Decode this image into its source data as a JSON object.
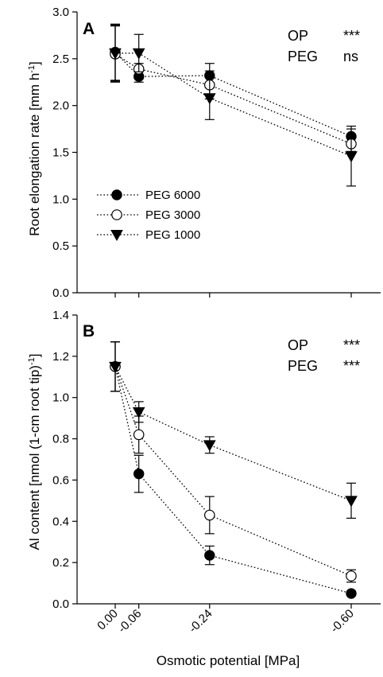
{
  "chart_data": [
    {
      "type": "line",
      "panel_label": "A",
      "ylabel": "Root elongation rate [mm h",
      "ylabel_sup": "-1",
      "ylabel_end": "]",
      "ylim": [
        0,
        3.0
      ],
      "yticks": [
        "0.0",
        "0.5",
        "1.0",
        "1.5",
        "2.0",
        "2.5",
        "3.0"
      ],
      "x": [
        0.0,
        -0.06,
        -0.24,
        -0.6
      ],
      "series": [
        {
          "name": "PEG 6000",
          "marker": "circle-filled",
          "values": [
            2.57,
            2.31,
            2.32,
            1.67
          ],
          "errors": [
            0.3,
            0.06,
            0.13,
            0.08
          ]
        },
        {
          "name": "PEG 3000",
          "marker": "circle-open",
          "values": [
            2.55,
            2.39,
            2.22,
            1.59
          ],
          "errors": [
            0.3,
            0.06,
            0.15,
            0.08
          ]
        },
        {
          "name": "PEG 1000",
          "marker": "triangle-down",
          "values": [
            2.56,
            2.56,
            2.08,
            1.46
          ],
          "errors": [
            0.3,
            0.2,
            0.23,
            0.32
          ]
        }
      ],
      "stats": [
        {
          "label": "OP",
          "value": "***"
        },
        {
          "label": "PEG",
          "value": "ns"
        }
      ],
      "legend_position": "center-left"
    },
    {
      "type": "line",
      "panel_label": "B",
      "ylabel": "Al content [nmol (1-cm root tip)",
      "ylabel_sup": "-1",
      "ylabel_end": "]",
      "ylim": [
        0,
        1.4
      ],
      "yticks": [
        "0.0",
        "0.2",
        "0.4",
        "0.6",
        "0.8",
        "1.0",
        "1.2",
        "1.4"
      ],
      "x": [
        0.0,
        -0.06,
        -0.24,
        -0.6
      ],
      "series": [
        {
          "name": "PEG 6000",
          "marker": "circle-filled",
          "values": [
            1.15,
            0.63,
            0.235,
            0.05
          ],
          "errors": [
            0.12,
            0.09,
            0.045,
            0.01
          ]
        },
        {
          "name": "PEG 3000",
          "marker": "circle-open",
          "values": [
            1.15,
            0.82,
            0.43,
            0.135
          ],
          "errors": [
            0.12,
            0.09,
            0.09,
            0.03
          ]
        },
        {
          "name": "PEG 1000",
          "marker": "triangle-down",
          "values": [
            1.15,
            0.93,
            0.77,
            0.5
          ],
          "errors": [
            0.12,
            0.05,
            0.04,
            0.085
          ]
        }
      ],
      "stats": [
        {
          "label": "OP",
          "value": "***"
        },
        {
          "label": "PEG",
          "value": "***"
        }
      ]
    }
  ],
  "x_tick_labels": [
    "0.00",
    "-0.06",
    "-0.24",
    "-0.60"
  ],
  "xlabel": "Osmotic potential [MPa]"
}
